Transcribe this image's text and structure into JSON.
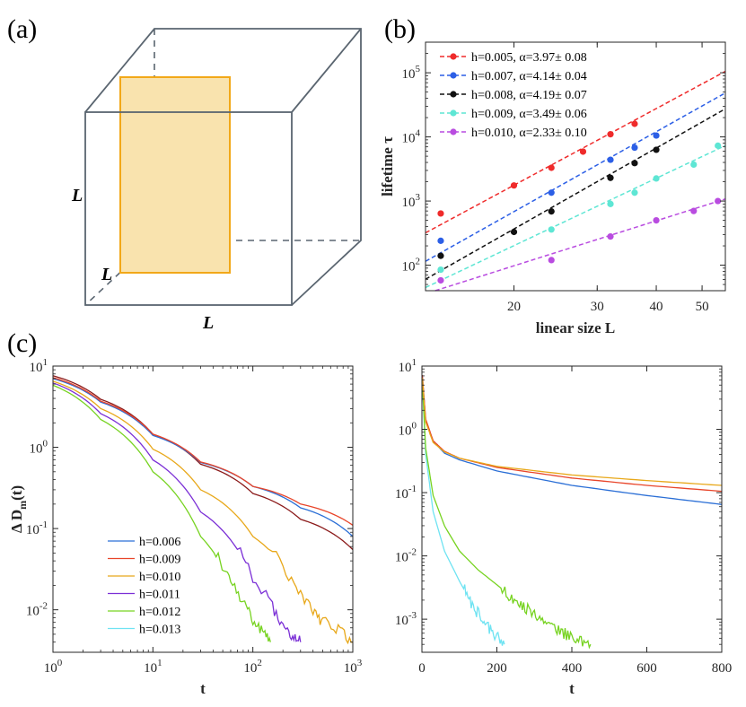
{
  "panels": {
    "a": {
      "label": "(a)",
      "edge_labels": [
        "L",
        "L",
        "L"
      ],
      "cube_color": "#5a6570",
      "plane_fill": "#f9e3ae",
      "plane_stroke": "#f2a818"
    },
    "b": {
      "label": "(b)"
    },
    "c": {
      "label": "(c)"
    }
  },
  "chart_data": [
    {
      "id": "b",
      "type": "scatter",
      "title": "",
      "xlabel": "linear size L",
      "ylabel": "lifetime τ",
      "xscale": "log",
      "yscale": "log",
      "xlim": [
        13,
        56
      ],
      "ylim": [
        40,
        300000
      ],
      "xticks": [
        20,
        30,
        40,
        50
      ],
      "xtick_labels": [
        "20",
        "30",
        "40",
        "50"
      ],
      "yticks": [
        100,
        1000,
        10000,
        100000
      ],
      "ytick_labels": [
        "10^2",
        "10^3",
        "10^4",
        "10^5"
      ],
      "legend_position": "top-left",
      "series": [
        {
          "name": "h=0.005, α=3.97± 0.08",
          "color": "#ef2b2b",
          "x": [
            14,
            20,
            24,
            28,
            32,
            36
          ],
          "y": [
            640,
            1750,
            3300,
            5900,
            11000,
            16000
          ],
          "fit_alpha": 3.97
        },
        {
          "name": "h=0.007, α=4.14± 0.04",
          "color": "#2c5fe6",
          "x": [
            14,
            24,
            32,
            36,
            40
          ],
          "y": [
            240,
            1350,
            4400,
            6800,
            10500
          ],
          "fit_alpha": 4.14
        },
        {
          "name": "h=0.008, α=4.19± 0.07",
          "color": "#111111",
          "x": [
            14,
            20,
            24,
            32,
            36,
            40
          ],
          "y": [
            140,
            330,
            690,
            2300,
            3900,
            6300
          ],
          "fit_alpha": 4.19
        },
        {
          "name": "h=0.009, α=3.49± 0.06",
          "color": "#5ee6d4",
          "x": [
            14,
            24,
            32,
            36,
            40,
            48,
            54
          ],
          "y": [
            85,
            360,
            900,
            1350,
            2250,
            3700,
            7300
          ],
          "fit_alpha": 3.49
        },
        {
          "name": "h=0.010, α=2.33± 0.10",
          "color": "#b94ce0",
          "x": [
            14,
            24,
            32,
            40,
            48,
            54
          ],
          "y": [
            58,
            120,
            280,
            500,
            700,
            1000
          ],
          "fit_alpha": 2.33
        }
      ]
    },
    {
      "id": "c-left",
      "type": "line",
      "xlabel": "t",
      "ylabel": "Δ D_m(t)",
      "xscale": "log",
      "yscale": "log",
      "xlim": [
        1,
        1000
      ],
      "ylim": [
        0.003,
        10
      ],
      "xticks": [
        1,
        10,
        100,
        1000
      ],
      "xtick_labels": [
        "10^0",
        "10^1",
        "10^2",
        "10^3"
      ],
      "yticks": [
        0.01,
        0.1,
        1,
        10
      ],
      "ytick_labels": [
        "10^-2",
        "10^-1",
        "10^0",
        "10^1"
      ],
      "legend_position": "bottom-left",
      "series": [
        {
          "name": "h=0.006",
          "color": "#2b6fd6",
          "t": [
            1,
            3,
            10,
            30,
            100,
            300,
            1000
          ],
          "y": [
            7.0,
            3.6,
            1.4,
            0.65,
            0.33,
            0.18,
            0.08
          ]
        },
        {
          "name": "h=0.009",
          "color": "#e8452a",
          "t": [
            1,
            3,
            10,
            30,
            100,
            300,
            1000
          ],
          "y": [
            7.2,
            3.7,
            1.45,
            0.66,
            0.33,
            0.2,
            0.11
          ]
        },
        {
          "name": "h=0.010",
          "color": "#e8a81a",
          "t": [
            1,
            3,
            10,
            30,
            100,
            300,
            500,
            1000
          ],
          "y": [
            6.5,
            3.0,
            0.95,
            0.3,
            0.08,
            0.015,
            0.007,
            0.004
          ]
        },
        {
          "name": "h=0.011",
          "color": "#7b2fd6",
          "t": [
            1,
            3,
            10,
            30,
            100,
            200,
            300
          ],
          "y": [
            6.2,
            2.6,
            0.7,
            0.16,
            0.025,
            0.006,
            0.004
          ]
        },
        {
          "name": "h=0.012",
          "color": "#77d321",
          "t": [
            1,
            3,
            10,
            30,
            60,
            100,
            150
          ],
          "y": [
            5.8,
            2.2,
            0.5,
            0.08,
            0.022,
            0.007,
            0.004
          ]
        },
        {
          "name": "h=0.013",
          "color": "#6fe3f2",
          "t": [],
          "y": []
        },
        {
          "name": "",
          "color": "#8b1a1a",
          "t": [
            1,
            3,
            10,
            30,
            100,
            300,
            1000
          ],
          "y": [
            7.6,
            3.9,
            1.45,
            0.62,
            0.27,
            0.13,
            0.055
          ]
        }
      ]
    },
    {
      "id": "c-right",
      "type": "line",
      "xlabel": "t",
      "ylabel": "",
      "xscale": "linear",
      "yscale": "log",
      "xlim": [
        0,
        800
      ],
      "ylim": [
        0.0003,
        10
      ],
      "xticks": [
        0,
        200,
        400,
        600,
        800
      ],
      "xtick_labels": [
        "0",
        "200",
        "400",
        "600",
        "800"
      ],
      "yticks": [
        0.001,
        0.01,
        0.1,
        1,
        10
      ],
      "ytick_labels": [
        "10^-3",
        "10^-2",
        "10^-1",
        "10^0",
        "10^1"
      ],
      "series": [
        {
          "name": "h=0.006",
          "color": "#2b6fd6",
          "t": [
            1,
            10,
            30,
            60,
            100,
            200,
            400,
            600,
            800
          ],
          "y": [
            7,
            1.4,
            0.65,
            0.42,
            0.33,
            0.22,
            0.13,
            0.09,
            0.065
          ]
        },
        {
          "name": "h=0.009",
          "color": "#e8452a",
          "t": [
            1,
            10,
            30,
            60,
            100,
            200,
            400,
            600,
            800
          ],
          "y": [
            7.2,
            1.45,
            0.66,
            0.45,
            0.35,
            0.25,
            0.17,
            0.13,
            0.105
          ]
        },
        {
          "name": "h=0.010",
          "color": "#e8a81a",
          "t": [
            1,
            10,
            30,
            60,
            100,
            200,
            400,
            600,
            800
          ],
          "y": [
            6.5,
            1.3,
            0.62,
            0.44,
            0.35,
            0.26,
            0.19,
            0.155,
            0.13
          ]
        },
        {
          "name": "h=0.012",
          "color": "#77d321",
          "t": [
            1,
            10,
            30,
            60,
            100,
            150,
            200,
            250,
            300,
            350,
            400,
            450
          ],
          "y": [
            5.8,
            0.5,
            0.09,
            0.03,
            0.012,
            0.006,
            0.0035,
            0.002,
            0.0012,
            0.0008,
            0.0005,
            0.0004
          ]
        },
        {
          "name": "h=0.013",
          "color": "#6fe3f2",
          "t": [
            1,
            10,
            30,
            60,
            100,
            140,
            180,
            220
          ],
          "y": [
            5.5,
            0.4,
            0.05,
            0.012,
            0.004,
            0.0015,
            0.0007,
            0.0004
          ]
        }
      ]
    }
  ]
}
